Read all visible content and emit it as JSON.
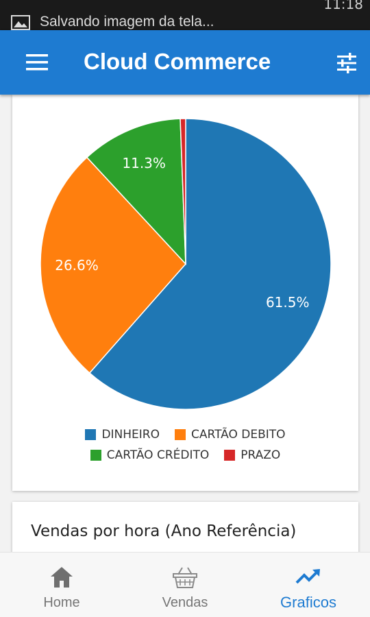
{
  "status_bar": {
    "notification_text": "Salvando imagem da tela...",
    "clock": "11:18"
  },
  "app_bar": {
    "title": "Cloud Commerce",
    "menu_icon": "menu-icon",
    "filter_icon": "tune-icon"
  },
  "chart_data": {
    "type": "pie",
    "categories": [
      "DINHEIRO",
      "CARTÃO DEBITO",
      "CARTÃO CRÉDITO",
      "PRAZO"
    ],
    "values": [
      61.5,
      26.6,
      11.3,
      0.6
    ],
    "labels": [
      "61.5%",
      "26.6%",
      "11.3%",
      ""
    ],
    "colors": [
      "#1f77b4",
      "#ff7f0e",
      "#2ca02c",
      "#d62728"
    ],
    "legend_position": "bottom"
  },
  "hour_card": {
    "title": "Vendas por hora (Ano Referência)"
  },
  "bottom_nav": {
    "items": [
      {
        "label": "Home",
        "icon": "home-icon",
        "active": false
      },
      {
        "label": "Vendas",
        "icon": "basket-icon",
        "active": false
      },
      {
        "label": "Graficos",
        "icon": "trending-up-icon",
        "active": true
      }
    ],
    "active_color": "#1e7bd1"
  }
}
